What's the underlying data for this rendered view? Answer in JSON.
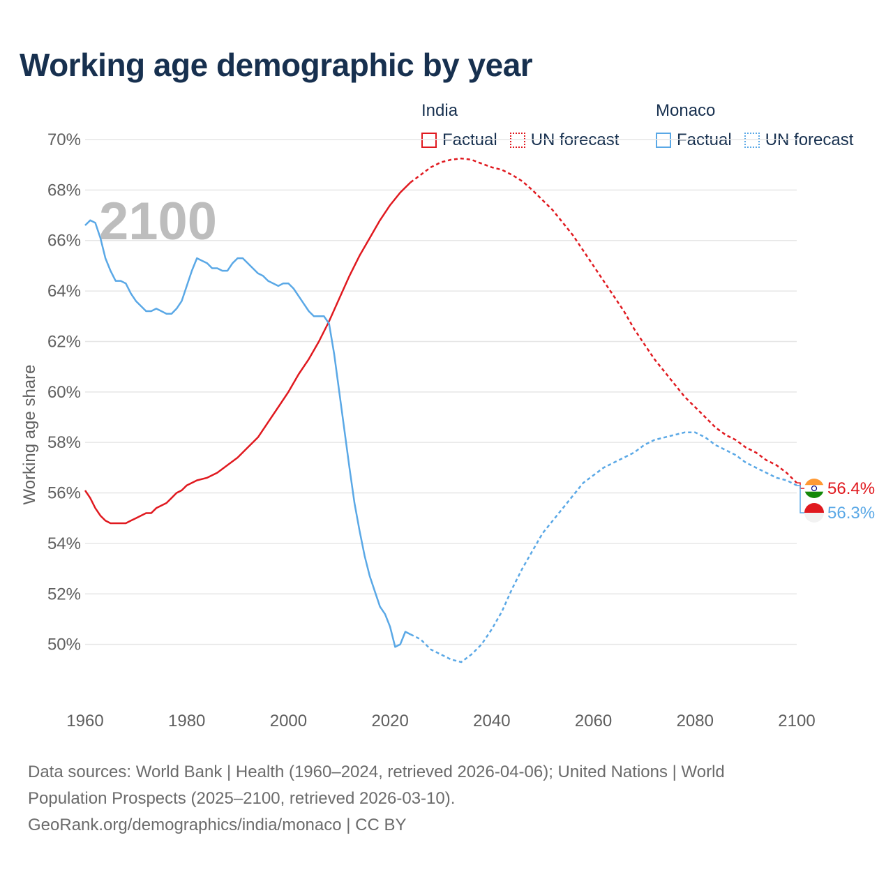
{
  "title": "Working age demographic by year",
  "legend": {
    "groups": [
      {
        "name": "India",
        "color": "#e0191f",
        "items": [
          "Factual",
          "UN forecast"
        ]
      },
      {
        "name": "Monaco",
        "color": "#5aa8e6",
        "items": [
          "Factual",
          "UN forecast"
        ]
      }
    ]
  },
  "year_watermark": "2100",
  "footer": {
    "line1": "Data sources: World Bank | Health (1960–2024, retrieved 2026-04-06); United Nations | World",
    "line2": "Population Prospects (2025–2100, retrieved 2026-03-10).",
    "line3": "GeoRank.org/demographics/india/monaco | CC BY"
  },
  "chart_data": {
    "type": "line",
    "title": "Working age demographic by year",
    "xlabel": "",
    "ylabel": "Working age share",
    "xlim": [
      1960,
      2100
    ],
    "ylim": [
      48,
      70
    ],
    "x_ticks": [
      1960,
      1980,
      2000,
      2020,
      2040,
      2060,
      2080,
      2100
    ],
    "y_ticks": [
      50,
      52,
      54,
      56,
      58,
      60,
      62,
      64,
      66,
      68,
      70
    ],
    "y_tick_labels": [
      "50%",
      "52%",
      "54%",
      "56%",
      "58%",
      "60%",
      "62%",
      "64%",
      "66%",
      "68%",
      "70%"
    ],
    "factual_until": 2024,
    "series": [
      {
        "name": "India",
        "color": "#e0191f",
        "end_label": "56.4%",
        "points": [
          [
            1960,
            56.1
          ],
          [
            1961,
            55.8
          ],
          [
            1962,
            55.4
          ],
          [
            1963,
            55.1
          ],
          [
            1964,
            54.9
          ],
          [
            1965,
            54.8
          ],
          [
            1966,
            54.8
          ],
          [
            1967,
            54.8
          ],
          [
            1968,
            54.8
          ],
          [
            1969,
            54.9
          ],
          [
            1970,
            55.0
          ],
          [
            1971,
            55.1
          ],
          [
            1972,
            55.2
          ],
          [
            1973,
            55.2
          ],
          [
            1974,
            55.4
          ],
          [
            1975,
            55.5
          ],
          [
            1976,
            55.6
          ],
          [
            1977,
            55.8
          ],
          [
            1978,
            56.0
          ],
          [
            1979,
            56.1
          ],
          [
            1980,
            56.3
          ],
          [
            1982,
            56.5
          ],
          [
            1984,
            56.6
          ],
          [
            1986,
            56.8
          ],
          [
            1988,
            57.1
          ],
          [
            1990,
            57.4
          ],
          [
            1992,
            57.8
          ],
          [
            1994,
            58.2
          ],
          [
            1996,
            58.8
          ],
          [
            1998,
            59.4
          ],
          [
            2000,
            60.0
          ],
          [
            2002,
            60.7
          ],
          [
            2004,
            61.3
          ],
          [
            2006,
            62.0
          ],
          [
            2008,
            62.8
          ],
          [
            2010,
            63.7
          ],
          [
            2012,
            64.6
          ],
          [
            2014,
            65.4
          ],
          [
            2016,
            66.1
          ],
          [
            2018,
            66.8
          ],
          [
            2020,
            67.4
          ],
          [
            2022,
            67.9
          ],
          [
            2024,
            68.3
          ],
          [
            2026,
            68.6
          ],
          [
            2028,
            68.9
          ],
          [
            2030,
            69.1
          ],
          [
            2032,
            69.2
          ],
          [
            2034,
            69.25
          ],
          [
            2036,
            69.2
          ],
          [
            2038,
            69.05
          ],
          [
            2040,
            68.9
          ],
          [
            2042,
            68.8
          ],
          [
            2044,
            68.6
          ],
          [
            2046,
            68.35
          ],
          [
            2048,
            68.0
          ],
          [
            2050,
            67.6
          ],
          [
            2052,
            67.2
          ],
          [
            2054,
            66.7
          ],
          [
            2056,
            66.2
          ],
          [
            2058,
            65.6
          ],
          [
            2060,
            65.0
          ],
          [
            2062,
            64.4
          ],
          [
            2064,
            63.8
          ],
          [
            2066,
            63.2
          ],
          [
            2068,
            62.5
          ],
          [
            2070,
            61.9
          ],
          [
            2072,
            61.3
          ],
          [
            2074,
            60.8
          ],
          [
            2076,
            60.3
          ],
          [
            2078,
            59.8
          ],
          [
            2080,
            59.4
          ],
          [
            2082,
            59.0
          ],
          [
            2084,
            58.6
          ],
          [
            2086,
            58.3
          ],
          [
            2088,
            58.1
          ],
          [
            2090,
            57.8
          ],
          [
            2092,
            57.6
          ],
          [
            2094,
            57.3
          ],
          [
            2096,
            57.1
          ],
          [
            2098,
            56.8
          ],
          [
            2100,
            56.4
          ]
        ]
      },
      {
        "name": "Monaco",
        "color": "#5aa8e6",
        "end_label": "56.3%",
        "points": [
          [
            1960,
            66.6
          ],
          [
            1961,
            66.8
          ],
          [
            1962,
            66.7
          ],
          [
            1963,
            66.1
          ],
          [
            1964,
            65.3
          ],
          [
            1965,
            64.8
          ],
          [
            1966,
            64.4
          ],
          [
            1967,
            64.4
          ],
          [
            1968,
            64.3
          ],
          [
            1969,
            63.9
          ],
          [
            1970,
            63.6
          ],
          [
            1971,
            63.4
          ],
          [
            1972,
            63.2
          ],
          [
            1973,
            63.2
          ],
          [
            1974,
            63.3
          ],
          [
            1975,
            63.2
          ],
          [
            1976,
            63.1
          ],
          [
            1977,
            63.1
          ],
          [
            1978,
            63.3
          ],
          [
            1979,
            63.6
          ],
          [
            1980,
            64.2
          ],
          [
            1981,
            64.8
          ],
          [
            1982,
            65.3
          ],
          [
            1983,
            65.2
          ],
          [
            1984,
            65.1
          ],
          [
            1985,
            64.9
          ],
          [
            1986,
            64.9
          ],
          [
            1987,
            64.8
          ],
          [
            1988,
            64.8
          ],
          [
            1989,
            65.1
          ],
          [
            1990,
            65.3
          ],
          [
            1991,
            65.3
          ],
          [
            1992,
            65.1
          ],
          [
            1993,
            64.9
          ],
          [
            1994,
            64.7
          ],
          [
            1995,
            64.6
          ],
          [
            1996,
            64.4
          ],
          [
            1997,
            64.3
          ],
          [
            1998,
            64.2
          ],
          [
            1999,
            64.3
          ],
          [
            2000,
            64.3
          ],
          [
            2001,
            64.1
          ],
          [
            2002,
            63.8
          ],
          [
            2003,
            63.5
          ],
          [
            2004,
            63.2
          ],
          [
            2005,
            63.0
          ],
          [
            2006,
            63.0
          ],
          [
            2007,
            63.0
          ],
          [
            2008,
            62.7
          ],
          [
            2009,
            61.5
          ],
          [
            2010,
            60.0
          ],
          [
            2011,
            58.5
          ],
          [
            2012,
            57.0
          ],
          [
            2013,
            55.6
          ],
          [
            2014,
            54.5
          ],
          [
            2015,
            53.5
          ],
          [
            2016,
            52.7
          ],
          [
            2017,
            52.1
          ],
          [
            2018,
            51.5
          ],
          [
            2019,
            51.2
          ],
          [
            2020,
            50.7
          ],
          [
            2021,
            49.9
          ],
          [
            2022,
            50.0
          ],
          [
            2023,
            50.5
          ],
          [
            2024,
            50.4
          ],
          [
            2026,
            50.2
          ],
          [
            2028,
            49.8
          ],
          [
            2030,
            49.6
          ],
          [
            2032,
            49.4
          ],
          [
            2034,
            49.3
          ],
          [
            2036,
            49.6
          ],
          [
            2038,
            50.0
          ],
          [
            2040,
            50.6
          ],
          [
            2042,
            51.3
          ],
          [
            2044,
            52.2
          ],
          [
            2046,
            53.0
          ],
          [
            2048,
            53.7
          ],
          [
            2050,
            54.4
          ],
          [
            2052,
            54.9
          ],
          [
            2054,
            55.4
          ],
          [
            2056,
            55.9
          ],
          [
            2058,
            56.4
          ],
          [
            2060,
            56.7
          ],
          [
            2062,
            57.0
          ],
          [
            2064,
            57.2
          ],
          [
            2066,
            57.4
          ],
          [
            2068,
            57.6
          ],
          [
            2070,
            57.9
          ],
          [
            2072,
            58.1
          ],
          [
            2074,
            58.2
          ],
          [
            2076,
            58.3
          ],
          [
            2078,
            58.4
          ],
          [
            2080,
            58.4
          ],
          [
            2082,
            58.2
          ],
          [
            2084,
            57.9
          ],
          [
            2086,
            57.7
          ],
          [
            2088,
            57.5
          ],
          [
            2090,
            57.2
          ],
          [
            2092,
            57.0
          ],
          [
            2094,
            56.8
          ],
          [
            2096,
            56.6
          ],
          [
            2098,
            56.5
          ],
          [
            2100,
            56.3
          ]
        ]
      }
    ]
  }
}
